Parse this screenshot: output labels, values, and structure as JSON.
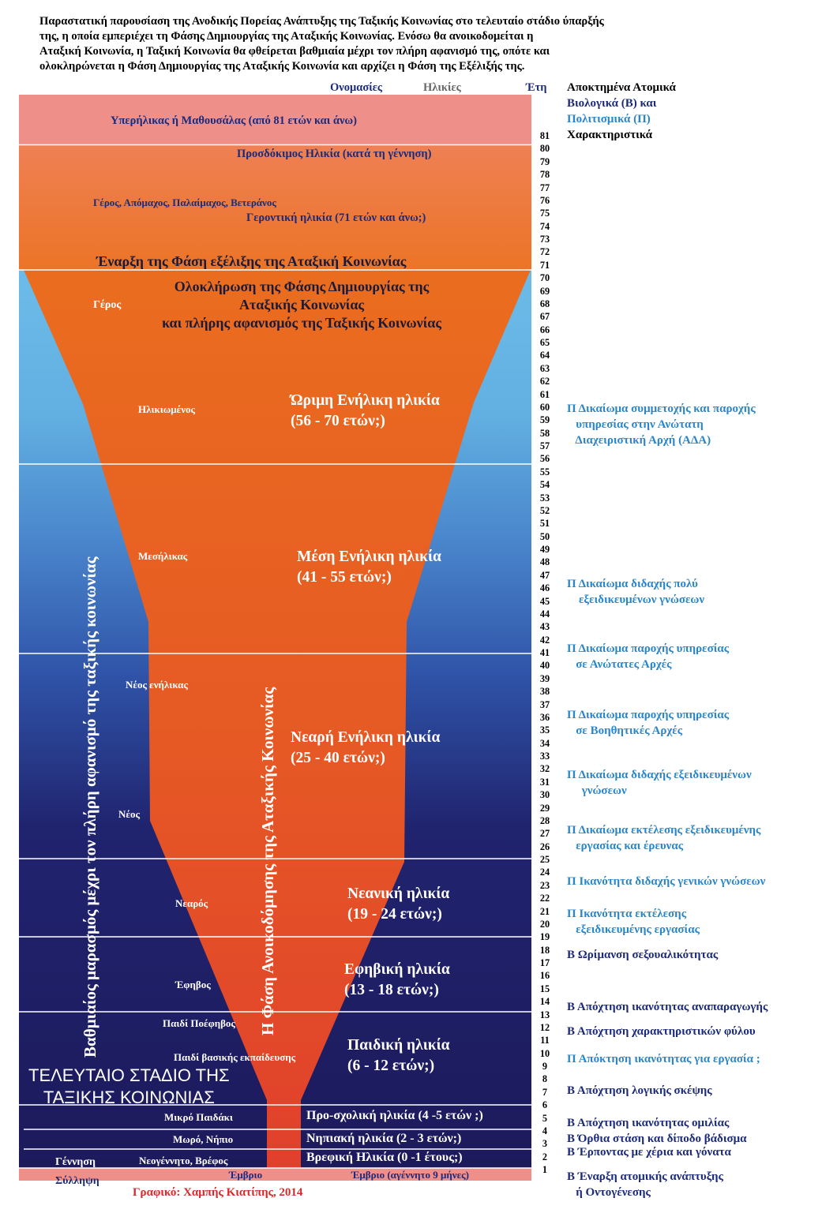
{
  "intro": {
    "lines": [
      "Παραστατική παρουσίαση της Ανοδικής Πορείας Ανάπτυξης της Ταξικής Κοινωνίας στο τελευταίο στάδιο ύπαρξής",
      "της, η οποία εμπεριέχει τη Φάσης Δημιουργίας της Αταξικής Κοινωνίας. Ενόσω θα ανοικοδομείται η",
      "Αταξική Κοινωνία, η Ταξική Κοινωνία θα φθείρεται βαθμιαία μέχρι τον πλήρη αφανισμό της, οπότε και",
      "ολοκληρώνεται η Φάση Δημιουργίας της Αταξικής Κοινωνία και αρχίζει η Φάση της Εξέλιξής της."
    ]
  },
  "headers": {
    "names": "Ονομασίες",
    "ages": "Ηλικίες",
    "years": "Έτη",
    "traits_line1": "Αποκτημένα Ατομικά",
    "traits_bio": "Βιολογικά (Β) και",
    "traits_cult": "Πολιτισμικά (Π)",
    "traits_line4": "Χαρακτηριστικά"
  },
  "top": {
    "methuselah": "Υπερήλικας ή Μαθουσάλας (από 81 ετών και άνω)",
    "life_expectancy": "Προσδόκιμος Ηλικία (κατά τη γέννηση)",
    "elder_names": "Γέρος, Απόμαχος, Παλαίμαχος, Βετεράνος",
    "elder_age": "Γεροντική ηλικία (71 ετών και άνω;)",
    "evolution_start": "Έναρξη της Φάση εξέλιξης της Αταξική Κοινωνίας",
    "completion": [
      "Ολοκλήρωση  της Φάσης Δημιουργίας της",
      "Αταξικής Κοινωνίας",
      "και πλήρης αφανισμός της Ταξικής Κοινωνίας"
    ]
  },
  "names": {
    "geros": "Γέρος",
    "ilikiomenos": "Ηλικιωμένος",
    "mesilikas": "Μεσήλικας",
    "neos_enilikas": "Νέος ενήλικας",
    "neos": "Νέος",
    "nearos": "Νεαρός",
    "efivos": "Έφηβος",
    "paidi_poefivos": "Παιδί Ποέφηβος",
    "paidi_vasikis": "Παιδί βασικής εκπαίδευσης",
    "mikro_paidaki": "Μικρό Παιδάκι",
    "moro": "Μωρό, Νήπιο",
    "neogennito": "Νεογέννητο, Βρέφος",
    "embryo": "Έμβριο",
    "gennisi": "Γέννηση",
    "syllipsi": "Σύλληψη"
  },
  "ages": {
    "mature": [
      "Ώριμη Ενήλικη ηλικία",
      "(56 - 70 ετών;)"
    ],
    "middle": [
      "Μέση Ενήλικη ηλικία",
      "(41 - 55 ετών;)"
    ],
    "young_adult": [
      "Νεαρή Ενήλικη ηλικία",
      "(25 - 40 ετών;)"
    ],
    "youth": [
      "Νεανική ηλικία",
      "(19 - 24 ετών;)"
    ],
    "teen": [
      "Εφηβική ηλικία",
      "(13 - 18 ετών;)"
    ],
    "child": [
      "Παιδική ηλικία",
      "(6 - 12 ετών;)"
    ],
    "preschool": "Προ-σχολική  ηλικία (4 -5 ετών ;)",
    "infant": "Νηπιακή ηλικία (2 - 3 ετών;)",
    "baby": "Βρεφική Ηλικία (0 -1 έτους;)",
    "embryo_age": "Έμβριο (αγέννητο 9 μήνες)"
  },
  "side_texts": {
    "decline": "Βαθμιαίος μαρασμός μέχρι τον πλήρη αφανισμό της ταξικής κοινωνίας",
    "construction": "Η Φάση Ανοικοδόμησης της Αταξικής Κοινωνίας",
    "last_stage": [
      "ΤΕΛΕΥΤΑΙΟ ΣΤΑΔΙΟ ΤΗΣ",
      "ΤΑΞΙΚΗΣ ΚΟΙΝΩΝΙΑΣ"
    ]
  },
  "credit": "Γραφικό: Χαμπής Κιατίπης, 2014",
  "years": [
    "81",
    "80",
    "79",
    "78",
    "77",
    "76",
    "75",
    "74",
    "73",
    "72",
    "71",
    "70",
    "69",
    "68",
    "67",
    "66",
    "65",
    "64",
    "63",
    "62",
    "61",
    "60",
    "59",
    "58",
    "57",
    "56",
    "55",
    "54",
    "53",
    "52",
    "51",
    "50",
    "49",
    "48",
    "47",
    "46",
    "45",
    "44",
    "43",
    "42",
    "41",
    "40",
    "39",
    "38",
    "37",
    "36",
    "35",
    "34",
    "33",
    "32",
    "31",
    "30",
    "29",
    "28",
    "27",
    "26",
    "25",
    "24",
    "23",
    "22",
    "21",
    "20",
    "19",
    "18",
    "17",
    "16",
    "15",
    "14",
    "13",
    "12",
    "11",
    "10",
    "9",
    "8",
    "7",
    "6",
    "5",
    "4",
    "3",
    "2",
    "1"
  ],
  "characteristics": [
    {
      "type": "P",
      "lines": [
        "Π Δικαίωμα συμμετοχής και παροχής",
        "   υπηρεσίας στην Ανώτατη",
        "   Διαχειριστική Αρχή (ΑΔΑ)"
      ]
    },
    {
      "type": "P",
      "lines": [
        "Π Δικαίωμα διδαχής πολύ",
        "    εξειδικευμένων γνώσεων"
      ]
    },
    {
      "type": "P",
      "lines": [
        "Π Δικαίωμα παροχής υπηρεσίας",
        "   σε Ανώτατες Αρχές"
      ]
    },
    {
      "type": "P",
      "lines": [
        "Π Δικαίωμα παροχής υπηρεσίας",
        "   σε Βοηθητικές Αρχές"
      ]
    },
    {
      "type": "P",
      "lines": [
        "Π Δικαίωμα διδαχής εξειδικευμένων",
        "     γνώσεων"
      ]
    },
    {
      "type": "P",
      "lines": [
        "Π Δικαίωμα εκτέλεσης εξειδικευμένης",
        "   εργασίας και έρευνας"
      ]
    },
    {
      "type": "P",
      "lines": [
        "Π Ικανότητα διδαχής γενικών γνώσεων"
      ]
    },
    {
      "type": "P",
      "lines": [
        "Π Ικανότητα εκτέλεσης",
        "   εξειδικευμένης εργασίας"
      ]
    },
    {
      "type": "B",
      "lines": [
        "Β Ωρίμανση σεξουαλικότητας"
      ]
    },
    {
      "type": "B",
      "lines": [
        "Β Απόχτηση ικανότητας αναπαραγωγής"
      ]
    },
    {
      "type": "B",
      "lines": [
        "Β Απόχτηση χαρακτηριστικών φύλου"
      ]
    },
    {
      "type": "P",
      "lines": [
        "Π Απόκτηση ικανότητας για εργασία ;"
      ]
    },
    {
      "type": "B",
      "lines": [
        "Β Απόχτηση λογικής σκέψης"
      ]
    },
    {
      "type": "B",
      "lines": [
        "Β Απόχτηση ικανότητας ομιλίας"
      ]
    },
    {
      "type": "B",
      "lines": [
        "Β Όρθια στάση και δίποδο βάδισμα"
      ]
    },
    {
      "type": "B",
      "lines": [
        "Β Έρποντας με χέρια και γόνατα"
      ]
    },
    {
      "type": "B",
      "lines": [
        "Β Έναρξη ατομικής ανάπτυξης",
        "   ή Οντογένεσης"
      ]
    }
  ],
  "colors": {
    "methuselah_band": "#ee8f8a",
    "orange_band": "#ed7a2a",
    "funnel_top": "#e86a1e",
    "funnel_bottom": "#e2432c",
    "sky": "#6cbbe8",
    "navy": "#1d1a5c",
    "pink_bottom": "#ee8f8a",
    "credit": "#d42a2a"
  }
}
